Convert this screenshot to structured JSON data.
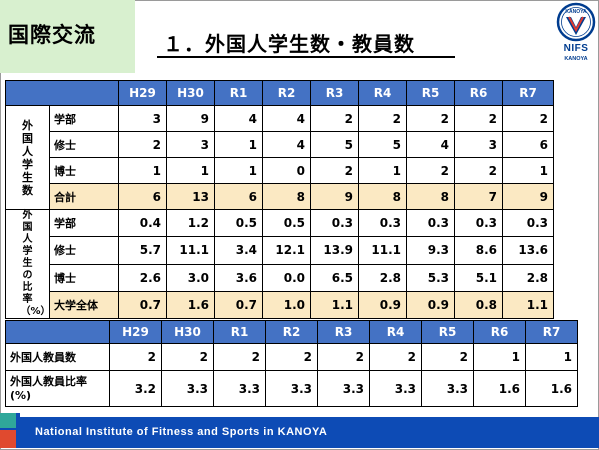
{
  "header": {
    "section_tab": "国際交流",
    "title": "１．外国人学生数・教員数",
    "logo": {
      "name": "NIFS",
      "sub": "KANOYA",
      "emblem": "KANOYA"
    }
  },
  "students_table": {
    "years": [
      "H29",
      "H30",
      "R1",
      "R2",
      "R3",
      "R4",
      "R5",
      "R6",
      "R7"
    ],
    "count_group_label": "外国人学生数",
    "count_rows": [
      {
        "label": "学部",
        "values": [
          "3",
          "9",
          "4",
          "4",
          "2",
          "2",
          "2",
          "2",
          "2"
        ]
      },
      {
        "label": "修士",
        "values": [
          "2",
          "3",
          "1",
          "4",
          "5",
          "5",
          "4",
          "3",
          "6"
        ]
      },
      {
        "label": "博士",
        "values": [
          "1",
          "1",
          "1",
          "0",
          "2",
          "1",
          "2",
          "2",
          "1"
        ]
      },
      {
        "label": "合計",
        "values": [
          "6",
          "13",
          "6",
          "8",
          "9",
          "8",
          "8",
          "7",
          "9"
        ]
      }
    ],
    "ratio_group_label": "外国人学生の比率（%）",
    "ratio_rows": [
      {
        "label": "学部",
        "values": [
          "0.4",
          "1.2",
          "0.5",
          "0.5",
          "0.3",
          "0.3",
          "0.3",
          "0.3",
          "0.3"
        ]
      },
      {
        "label": "修士",
        "values": [
          "5.7",
          "11.1",
          "3.4",
          "12.1",
          "13.9",
          "11.1",
          "9.3",
          "8.6",
          "13.6"
        ]
      },
      {
        "label": "博士",
        "values": [
          "2.6",
          "3.0",
          "3.6",
          "0.0",
          "6.5",
          "2.8",
          "5.3",
          "5.1",
          "2.8"
        ]
      },
      {
        "label": "大学全体",
        "values": [
          "0.7",
          "1.6",
          "0.7",
          "1.0",
          "1.1",
          "0.9",
          "0.9",
          "0.8",
          "1.1"
        ]
      }
    ]
  },
  "faculty_table": {
    "years": [
      "H29",
      "H30",
      "R1",
      "R2",
      "R3",
      "R4",
      "R5",
      "R6",
      "R7"
    ],
    "rows": [
      {
        "label": "外国人教員数",
        "values": [
          "2",
          "2",
          "2",
          "2",
          "2",
          "2",
          "2",
          "1",
          "1"
        ]
      },
      {
        "label": "外国人教員比率(%)",
        "values": [
          "3.2",
          "3.3",
          "3.3",
          "3.3",
          "3.3",
          "3.3",
          "3.3",
          "1.6",
          "1.6"
        ]
      }
    ]
  },
  "footer": {
    "text": "National Institute of Fitness and Sports in KANOYA"
  },
  "colors": {
    "header_blue": "#4472c4",
    "tab_green": "#d8f0cf",
    "total_row": "#fbe9c3",
    "footer_blue": "#0d4bb5"
  }
}
